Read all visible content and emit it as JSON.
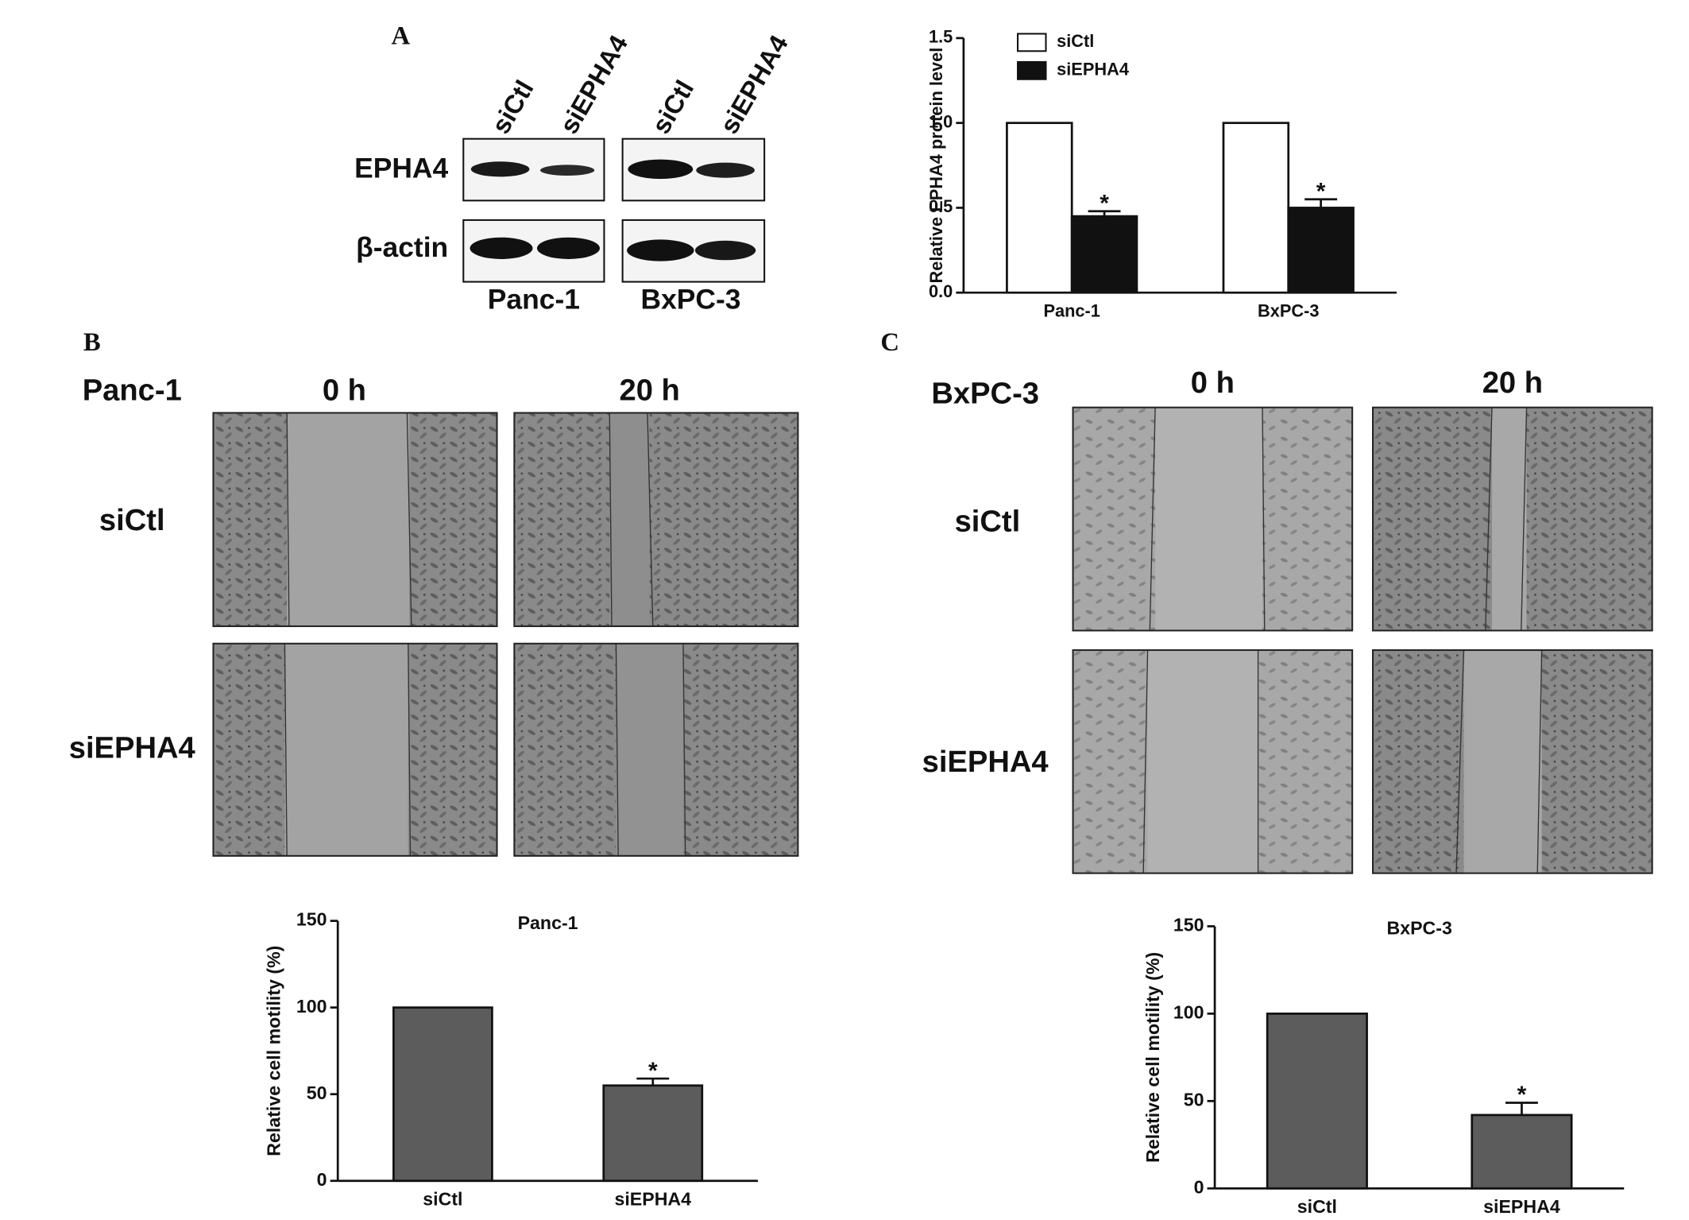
{
  "panel_labels": [
    "A",
    "B",
    "C"
  ],
  "western_blot": {
    "lanes": [
      "siCtl",
      "siEPHA4",
      "siCtl",
      "siEPHA4"
    ],
    "proteins": [
      "EPHA4",
      "β-actin"
    ],
    "cell_lines": [
      "Panc-1",
      "BxPC-3"
    ]
  },
  "wound_healing": [
    {
      "cell_line": "Panc-1",
      "times": [
        "0 h",
        "20 h"
      ],
      "conditions": [
        "siCtl",
        "siEPHA4"
      ]
    },
    {
      "cell_line": "BxPC-3",
      "times": [
        "0 h",
        "20 h"
      ],
      "conditions": [
        "siCtl",
        "siEPHA4"
      ]
    }
  ],
  "chart_data": [
    {
      "type": "bar",
      "y_label": "Relative EPHA4 protein level",
      "categories": [
        "Panc-1",
        "BxPC-3"
      ],
      "series": [
        {
          "name": "siCtl",
          "color": "#ffffff",
          "values": [
            1.0,
            1.0
          ]
        },
        {
          "name": "siEPHA4",
          "color": "#111111",
          "values": [
            0.45,
            0.5
          ],
          "errors": [
            0.03,
            0.05
          ],
          "annotations": [
            "*",
            "*"
          ]
        }
      ],
      "ylim": [
        0,
        1.5
      ],
      "yticks": [
        {
          "value": 0,
          "label": "0.0"
        },
        {
          "value": 0.5,
          "label": "0.5"
        },
        {
          "value": 1,
          "label": "1.0"
        },
        {
          "value": 1.5,
          "label": "1.5"
        }
      ],
      "legend": "top-left"
    },
    {
      "type": "bar",
      "title": "Panc-1",
      "y_label": "Relative cell motility (%)",
      "categories": [
        "siCtl",
        "siEPHA4"
      ],
      "values": [
        100,
        55
      ],
      "errors": [
        null,
        4
      ],
      "annotations": [
        null,
        "*"
      ],
      "color": "#5c5c5c",
      "ylim": [
        0,
        150
      ],
      "yticks": [
        0,
        50,
        100,
        150
      ]
    },
    {
      "type": "bar",
      "title": "BxPC-3",
      "y_label": "Relative cell motility (%)",
      "categories": [
        "siCtl",
        "siEPHA4"
      ],
      "values": [
        100,
        42
      ],
      "errors": [
        null,
        7
      ],
      "annotations": [
        null,
        "*"
      ],
      "color": "#5c5c5c",
      "ylim": [
        0,
        150
      ],
      "yticks": [
        0,
        50,
        100,
        150
      ]
    }
  ]
}
